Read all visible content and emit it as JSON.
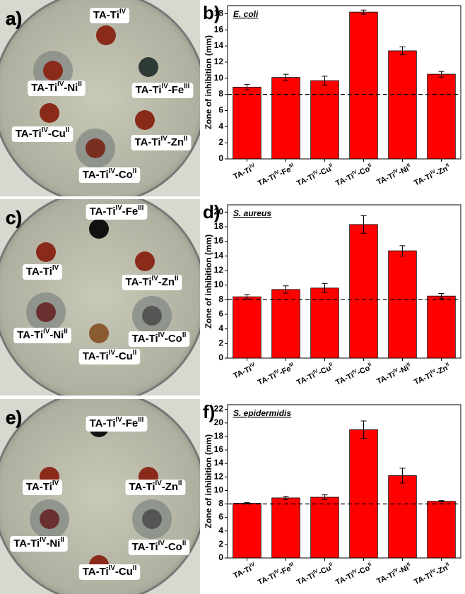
{
  "photos": [
    {
      "panel": "a)",
      "labels": [
        "TA-TiIV",
        "TA-TiIV-NiII",
        "TA-TiIV-FeIII",
        "TA-TiIV-CuII",
        "TA-TiIV-ZnII",
        "TA-TiIV-CoII"
      ]
    },
    {
      "panel": "c)",
      "labels": [
        "TA-TiIV-FeIII",
        "TA-TiIV",
        "TA-TiIV-ZnII",
        "TA-TiIV-NiII",
        "TA-TiIV-CoII",
        "TA-TiIV-CuII"
      ]
    },
    {
      "panel": "e)",
      "labels": [
        "TA-TiIV-FeIII",
        "TA-TiIV",
        "TA-TiIV-ZnII",
        "TA-TiIV-NiII",
        "TA-TiIV-CoII",
        "TA-TiIV-CuII"
      ]
    }
  ],
  "chart_data": [
    {
      "type": "bar",
      "panel": "b)",
      "title": "E. coli",
      "ylabel": "Zone of inhibition (mm)",
      "color": "#ff0000",
      "categories": [
        "TA-TiIV",
        "TA-TiIV-FeIII",
        "TA-TiIV-CuII",
        "TA-TiIV-CoII",
        "TA-TiIV-NiII",
        "TA-TiIV-ZnII"
      ],
      "values": [
        8.9,
        10.1,
        9.7,
        18.2,
        13.4,
        10.5
      ],
      "errors": [
        0.35,
        0.4,
        0.55,
        0.25,
        0.5,
        0.35
      ],
      "hline": 8,
      "ylim": [
        0,
        19
      ],
      "yticks": [
        0,
        2,
        4,
        6,
        8,
        10,
        12,
        14,
        16,
        18
      ]
    },
    {
      "type": "bar",
      "panel": "d)",
      "title": "S. aureus",
      "ylabel": "Zone of inhibition (mm)",
      "color": "#ff0000",
      "categories": [
        "TA-TiIV",
        "TA-TiIV-FeIII",
        "TA-TiIV-CuII",
        "TA-TiIV-CoII",
        "TA-TiIV-NiII",
        "TA-TiIV-ZnII"
      ],
      "values": [
        8.4,
        9.4,
        9.6,
        18.3,
        14.7,
        8.5
      ],
      "errors": [
        0.3,
        0.5,
        0.6,
        1.2,
        0.7,
        0.35
      ],
      "hline": 8,
      "ylim": [
        0,
        21
      ],
      "yticks": [
        0,
        2,
        4,
        6,
        8,
        10,
        12,
        14,
        16,
        18,
        20
      ]
    },
    {
      "type": "bar",
      "panel": "f)",
      "title": "S. epidermidis",
      "ylabel": "Zone of inhibition (mm)",
      "color": "#ff0000",
      "categories": [
        "TA-TiIV",
        "TA-TiIV-FeIII",
        "TA-TiIV-CuII",
        "TA-TiIV-CoII",
        "TA-TiIV-NiII",
        "TA-TiIV-ZnII"
      ],
      "values": [
        8.1,
        8.9,
        9.0,
        19.0,
        12.2,
        8.4
      ],
      "errors": [
        0.1,
        0.25,
        0.35,
        1.3,
        1.1,
        0.1
      ],
      "hline": 8,
      "ylim": [
        0,
        22.7
      ],
      "yticks": [
        0,
        2,
        4,
        6,
        8,
        10,
        12,
        14,
        16,
        18,
        20,
        22
      ]
    }
  ]
}
